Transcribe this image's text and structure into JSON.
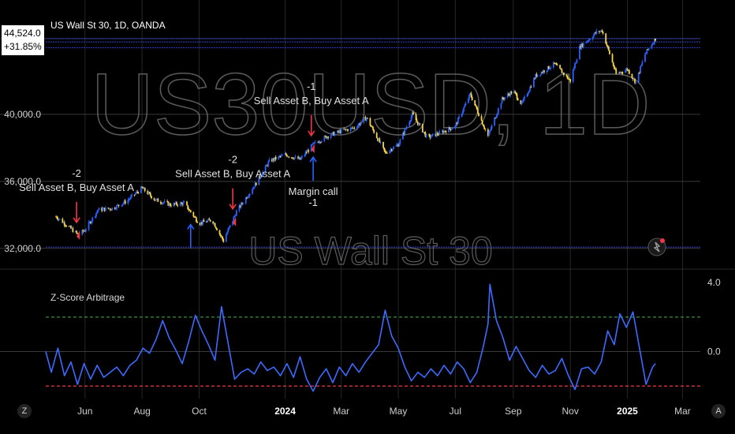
{
  "header": {
    "symbol_title": "US Wall St 30, 1D, OANDA",
    "price_value": "44,524.0",
    "change_value": "+31.85%"
  },
  "watermark": {
    "main": "US30USD, 1D",
    "sub": "US Wall St 30"
  },
  "indicator": {
    "title": "Z-Score Arbitrage"
  },
  "annotations": [
    {
      "text_top": "-2",
      "text_bottom": "Sell Asset B, Buy Asset A",
      "date": "2023-05-23"
    },
    {
      "text_top": "-2",
      "text_bottom": "Sell Asset B, Buy Asset A",
      "date": "2023-11-06"
    },
    {
      "text_top": "-1",
      "text_bottom": "Sell Asset B, Buy Asset A",
      "date": "2024-01-29"
    },
    {
      "text_top": "Margin call",
      "text_bottom": "-1",
      "date": "2024-01-31"
    }
  ],
  "corner_buttons": {
    "left": "Z",
    "right": "A"
  },
  "colors": {
    "background": "#000000",
    "candle_up": "#2962ff",
    "candle_down": "#f5d547",
    "sell_arrow": "#f23645",
    "buy_arrow": "#2962ff",
    "zscore_line": "#3d6bff",
    "upper_band": "#4caf50",
    "lower_band": "#f23645",
    "blue_hline": "#2c3fc8"
  },
  "chart_data": [
    {
      "type": "candlestick",
      "title": "US Wall St 30, 1D, OANDA",
      "x_range": [
        "2023-04-20",
        "2025-03-20"
      ],
      "ylim": [
        31000,
        45600
      ],
      "y_ticks": [
        "44,524.0",
        "40,000.0",
        "36,000.0",
        "32,000.0"
      ],
      "y_tick_values": [
        44524,
        40000,
        36000,
        32000
      ],
      "horizontal_levels": [
        44524,
        44320,
        43980,
        32080
      ],
      "grid": true,
      "x_tick_labels": [
        "Jun",
        "Aug",
        "Oct",
        "2024",
        "Mar",
        "May",
        "Jul",
        "Sep",
        "Nov",
        "2025",
        "Mar"
      ],
      "x_tick_dates": [
        "2023-06-01",
        "2023-08-01",
        "2023-10-01",
        "2024-01-01",
        "2024-03-01",
        "2024-05-01",
        "2024-07-01",
        "2024-09-01",
        "2024-11-01",
        "2025-01-01",
        "2025-03-01"
      ],
      "close_path": [
        [
          "2023-05-01",
          33900
        ],
        [
          "2023-05-10",
          33500
        ],
        [
          "2023-05-25",
          32800
        ],
        [
          "2023-06-01",
          33100
        ],
        [
          "2023-06-15",
          34300
        ],
        [
          "2023-07-01",
          34400
        ],
        [
          "2023-07-15",
          34800
        ],
        [
          "2023-08-01",
          35600
        ],
        [
          "2023-08-15",
          34900
        ],
        [
          "2023-09-01",
          34600
        ],
        [
          "2023-09-15",
          34700
        ],
        [
          "2023-10-01",
          33500
        ],
        [
          "2023-10-15",
          33700
        ],
        [
          "2023-10-27",
          32450
        ],
        [
          "2023-11-10",
          34200
        ],
        [
          "2023-12-01",
          35900
        ],
        [
          "2023-12-15",
          37200
        ],
        [
          "2024-01-01",
          37600
        ],
        [
          "2024-01-17",
          37300
        ],
        [
          "2024-01-31",
          38200
        ],
        [
          "2024-02-15",
          38700
        ],
        [
          "2024-03-01",
          39000
        ],
        [
          "2024-03-15",
          39200
        ],
        [
          "2024-03-28",
          39800
        ],
        [
          "2024-04-17",
          37700
        ],
        [
          "2024-05-01",
          38200
        ],
        [
          "2024-05-16",
          40000
        ],
        [
          "2024-06-01",
          38600
        ],
        [
          "2024-06-15",
          38900
        ],
        [
          "2024-07-01",
          39300
        ],
        [
          "2024-07-17",
          41200
        ],
        [
          "2024-08-05",
          38700
        ],
        [
          "2024-08-20",
          40900
        ],
        [
          "2024-09-01",
          41400
        ],
        [
          "2024-09-10",
          40600
        ],
        [
          "2024-09-25",
          42300
        ],
        [
          "2024-10-15",
          43000
        ],
        [
          "2024-11-01",
          42000
        ],
        [
          "2024-11-11",
          44000
        ],
        [
          "2024-11-29",
          44900
        ],
        [
          "2024-12-05",
          45000
        ],
        [
          "2024-12-20",
          42400
        ],
        [
          "2025-01-01",
          42700
        ],
        [
          "2025-01-10",
          41900
        ],
        [
          "2025-01-20",
          43600
        ],
        [
          "2025-01-31",
          44524
        ]
      ],
      "signals": [
        {
          "type": "sell",
          "date": "2023-05-23",
          "label": "Sell Asset B, Buy Asset A",
          "value": "-2"
        },
        {
          "type": "buy",
          "date": "2023-09-22"
        },
        {
          "type": "sell",
          "date": "2023-11-06",
          "label": "Sell Asset B, Buy Asset A",
          "value": "-2"
        },
        {
          "type": "sell",
          "date": "2024-01-29",
          "label": "Sell Asset B, Buy Asset A",
          "value": "-1"
        },
        {
          "type": "buy",
          "date": "2024-01-31",
          "label": "Margin call",
          "value": "-1"
        }
      ]
    },
    {
      "type": "line",
      "title": "Z-Score Arbitrage",
      "ylim": [
        -2.4,
        4.6
      ],
      "y_ticks": [
        "4.0",
        "0.0"
      ],
      "y_tick_values": [
        4.0,
        0.0
      ],
      "upper_band": 2.0,
      "lower_band": -2.0,
      "points": [
        [
          "2023-04-20",
          0.0
        ],
        [
          "2023-04-26",
          -1.2
        ],
        [
          "2023-05-03",
          0.2
        ],
        [
          "2023-05-10",
          -1.4
        ],
        [
          "2023-05-17",
          -0.6
        ],
        [
          "2023-05-24",
          -1.9
        ],
        [
          "2023-05-31",
          -0.7
        ],
        [
          "2023-06-07",
          -1.6
        ],
        [
          "2023-06-14",
          -0.8
        ],
        [
          "2023-06-21",
          -1.5
        ],
        [
          "2023-06-28",
          -1.2
        ],
        [
          "2023-07-05",
          -0.9
        ],
        [
          "2023-07-12",
          -1.4
        ],
        [
          "2023-07-19",
          -0.8
        ],
        [
          "2023-07-26",
          -0.5
        ],
        [
          "2023-08-02",
          0.2
        ],
        [
          "2023-08-09",
          -0.1
        ],
        [
          "2023-08-16",
          0.7
        ],
        [
          "2023-08-23",
          1.8
        ],
        [
          "2023-08-30",
          0.8
        ],
        [
          "2023-09-06",
          0.1
        ],
        [
          "2023-09-13",
          -0.7
        ],
        [
          "2023-09-20",
          0.6
        ],
        [
          "2023-09-27",
          2.1
        ],
        [
          "2023-10-04",
          1.2
        ],
        [
          "2023-10-11",
          0.4
        ],
        [
          "2023-10-18",
          -0.5
        ],
        [
          "2023-10-25",
          2.6
        ],
        [
          "2023-11-01",
          0.5
        ],
        [
          "2023-11-08",
          -1.6
        ],
        [
          "2023-11-15",
          -1.2
        ],
        [
          "2023-11-22",
          -1.0
        ],
        [
          "2023-11-29",
          -1.3
        ],
        [
          "2023-12-06",
          -0.6
        ],
        [
          "2023-12-13",
          -1.1
        ],
        [
          "2023-12-20",
          -0.9
        ],
        [
          "2023-12-27",
          -1.4
        ],
        [
          "2024-01-03",
          -0.7
        ],
        [
          "2024-01-10",
          -1.5
        ],
        [
          "2024-01-17",
          -0.3
        ],
        [
          "2024-01-24",
          -1.6
        ],
        [
          "2024-01-31",
          -2.3
        ],
        [
          "2024-02-07",
          -1.5
        ],
        [
          "2024-02-14",
          -1.0
        ],
        [
          "2024-02-21",
          -1.8
        ],
        [
          "2024-02-28",
          -0.9
        ],
        [
          "2024-03-06",
          -1.4
        ],
        [
          "2024-03-13",
          -0.7
        ],
        [
          "2024-03-20",
          -1.2
        ],
        [
          "2024-03-27",
          -0.6
        ],
        [
          "2024-04-03",
          -0.1
        ],
        [
          "2024-04-10",
          0.4
        ],
        [
          "2024-04-17",
          2.4
        ],
        [
          "2024-04-24",
          0.9
        ],
        [
          "2024-05-01",
          0.2
        ],
        [
          "2024-05-08",
          -0.9
        ],
        [
          "2024-05-15",
          -1.7
        ],
        [
          "2024-05-22",
          -1.2
        ],
        [
          "2024-05-29",
          -1.5
        ],
        [
          "2024-06-05",
          -1.0
        ],
        [
          "2024-06-12",
          -1.4
        ],
        [
          "2024-06-19",
          -0.8
        ],
        [
          "2024-06-26",
          -1.3
        ],
        [
          "2024-07-03",
          -0.6
        ],
        [
          "2024-07-10",
          -1.0
        ],
        [
          "2024-07-17",
          -1.8
        ],
        [
          "2024-07-24",
          -1.2
        ],
        [
          "2024-07-31",
          0.3
        ],
        [
          "2024-08-05",
          1.6
        ],
        [
          "2024-08-07",
          3.9
        ],
        [
          "2024-08-14",
          1.8
        ],
        [
          "2024-08-21",
          0.8
        ],
        [
          "2024-08-28",
          -0.5
        ],
        [
          "2024-09-04",
          0.3
        ],
        [
          "2024-09-11",
          -0.4
        ],
        [
          "2024-09-18",
          -1.1
        ],
        [
          "2024-09-25",
          -1.5
        ],
        [
          "2024-10-02",
          -0.8
        ],
        [
          "2024-10-09",
          -1.3
        ],
        [
          "2024-10-16",
          -1.1
        ],
        [
          "2024-10-23",
          -0.4
        ],
        [
          "2024-10-30",
          -1.4
        ],
        [
          "2024-11-06",
          -2.2
        ],
        [
          "2024-11-13",
          -1.0
        ],
        [
          "2024-11-20",
          -0.9
        ],
        [
          "2024-11-27",
          -1.3
        ],
        [
          "2024-12-04",
          -0.6
        ],
        [
          "2024-12-11",
          1.2
        ],
        [
          "2024-12-18",
          0.4
        ],
        [
          "2024-12-24",
          2.2
        ],
        [
          "2024-12-31",
          1.4
        ],
        [
          "2025-01-07",
          2.3
        ],
        [
          "2025-01-14",
          0.2
        ],
        [
          "2025-01-21",
          -1.9
        ],
        [
          "2025-01-28",
          -0.9
        ],
        [
          "2025-01-31",
          -0.7
        ]
      ]
    }
  ]
}
